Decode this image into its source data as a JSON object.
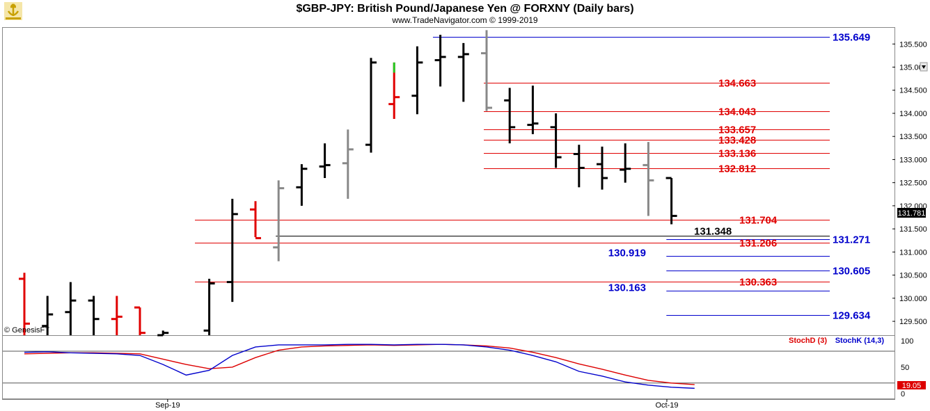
{
  "header": {
    "title": "$GBP-JPY:  British Pound/Japanese Yen @ FORXNY  (Daily bars)",
    "subtitle": "www.TradeNavigator.com © 1999-2019",
    "logo_icon": "gold-anchor-logo-icon"
  },
  "copyright": "© GenesisFT",
  "colors": {
    "red_level": "#e00000",
    "blue_level": "#0000cc",
    "black": "#000000",
    "gray_bar": "#888888",
    "green_bar": "#22cc22",
    "stoch_d": "#dd0000",
    "stoch_k": "#0000cc"
  },
  "chart_data": [
    {
      "type": "ohlc",
      "ylim": [
        129.2,
        135.85
      ],
      "y_ticks": [
        "135.500",
        "135.000",
        "134.500",
        "134.000",
        "133.500",
        "133.000",
        "132.500",
        "132.000",
        "131.500",
        "131.000",
        "130.500",
        "130.000",
        "129.500"
      ],
      "x_labels": [
        {
          "label": "Sep-19",
          "index": 6.2
        },
        {
          "label": "Oct-19",
          "index": 27.8
        }
      ],
      "last_price": "131.781",
      "bars": [
        {
          "o": 130.42,
          "h": 130.55,
          "l": 129.2,
          "c": 129.45,
          "color": "red"
        },
        {
          "o": 129.4,
          "h": 130.05,
          "l": 129.2,
          "c": 129.65,
          "color": "black"
        },
        {
          "o": 129.7,
          "h": 130.35,
          "l": 129.2,
          "c": 129.95,
          "color": "black"
        },
        {
          "o": 129.95,
          "h": 130.05,
          "l": 129.2,
          "c": 129.55,
          "color": "black"
        },
        {
          "o": 129.55,
          "h": 130.05,
          "l": 129.2,
          "c": 129.6,
          "color": "red"
        },
        {
          "o": 129.8,
          "h": 129.8,
          "l": 129.2,
          "c": 129.25,
          "color": "red"
        },
        {
          "o": 129.2,
          "h": 129.3,
          "l": 129.2,
          "c": 129.25,
          "color": "black"
        },
        {
          "o": 129.3,
          "h": 129.3,
          "l": 129.2,
          "c": 129.3,
          "color": "none"
        },
        {
          "o": 129.3,
          "h": 130.42,
          "l": 129.2,
          "c": 130.32,
          "color": "black"
        },
        {
          "o": 130.35,
          "h": 132.15,
          "l": 129.92,
          "c": 131.82,
          "color": "black"
        },
        {
          "o": 131.92,
          "h": 132.1,
          "l": 131.32,
          "c": 131.3,
          "color": "red"
        },
        {
          "o": 131.1,
          "h": 132.55,
          "l": 130.8,
          "c": 132.38,
          "color": "gray"
        },
        {
          "o": 132.4,
          "h": 132.9,
          "l": 132.0,
          "c": 132.8,
          "color": "black"
        },
        {
          "o": 132.85,
          "h": 133.35,
          "l": 132.6,
          "c": 132.88,
          "color": "black"
        },
        {
          "o": 132.92,
          "h": 133.65,
          "l": 132.15,
          "c": 133.22,
          "color": "gray"
        },
        {
          "o": 133.32,
          "h": 135.2,
          "l": 133.15,
          "c": 135.1,
          "color": "black"
        },
        {
          "o": 134.2,
          "h": 135.1,
          "l": 133.88,
          "c": 134.35,
          "color": "red",
          "green_top": 135.1
        },
        {
          "o": 134.38,
          "h": 135.45,
          "l": 133.98,
          "c": 135.1,
          "color": "black"
        },
        {
          "o": 135.15,
          "h": 135.7,
          "l": 134.58,
          "c": 135.22,
          "color": "black"
        },
        {
          "o": 135.22,
          "h": 135.52,
          "l": 134.25,
          "c": 135.28,
          "color": "black"
        },
        {
          "o": 135.3,
          "h": 135.8,
          "l": 134.05,
          "c": 134.12,
          "color": "gray"
        },
        {
          "o": 134.28,
          "h": 134.55,
          "l": 133.35,
          "c": 133.7,
          "color": "black"
        },
        {
          "o": 133.75,
          "h": 134.6,
          "l": 133.55,
          "c": 133.78,
          "color": "black"
        },
        {
          "o": 133.7,
          "h": 134.0,
          "l": 132.82,
          "c": 133.05,
          "color": "black"
        },
        {
          "o": 133.12,
          "h": 133.32,
          "l": 132.4,
          "c": 132.82,
          "color": "black"
        },
        {
          "o": 132.9,
          "h": 133.28,
          "l": 132.35,
          "c": 132.6,
          "color": "black"
        },
        {
          "o": 132.78,
          "h": 133.35,
          "l": 132.5,
          "c": 132.8,
          "color": "black"
        },
        {
          "o": 132.88,
          "h": 133.38,
          "l": 131.78,
          "c": 132.55,
          "color": "gray"
        },
        {
          "o": 132.6,
          "h": 132.6,
          "l": 131.6,
          "c": 131.781,
          "color": "black"
        }
      ]
    },
    {
      "type": "levels",
      "levels": [
        {
          "value": "135.649",
          "color": "blue",
          "x_start": 17.8,
          "label_side": "right"
        },
        {
          "value": "134.663",
          "color": "red",
          "x_start": 20.0,
          "label_side": "mid"
        },
        {
          "value": "134.043",
          "color": "red",
          "x_start": 20.0,
          "label_side": "mid"
        },
        {
          "value": "133.657",
          "color": "red",
          "x_start": 20.0,
          "label_side": "mid"
        },
        {
          "value": "133.428",
          "color": "red",
          "x_start": 20.0,
          "label_side": "mid"
        },
        {
          "value": "133.136",
          "color": "red",
          "x_start": 20.0,
          "label_side": "mid"
        },
        {
          "value": "132.812",
          "color": "red",
          "x_start": 20.0,
          "label_side": "mid"
        },
        {
          "value": "131.704",
          "color": "red",
          "x_start": 7.5,
          "label_side": "mid"
        },
        {
          "value": "131.348",
          "color": "black",
          "x_start": 11.0,
          "label_side": "left"
        },
        {
          "value": "131.271",
          "color": "blue",
          "x_start": 27.9,
          "label_side": "right"
        },
        {
          "value": "131.206",
          "color": "red",
          "x_start": 7.5,
          "label_side": "mid"
        },
        {
          "value": "130.919",
          "color": "blue",
          "x_start": 27.9,
          "label_side": "mid_left"
        },
        {
          "value": "130.605",
          "color": "blue",
          "x_start": 27.9,
          "label_side": "right"
        },
        {
          "value": "130.363",
          "color": "red",
          "x_start": 7.5,
          "label_side": "mid"
        },
        {
          "value": "130.163",
          "color": "blue",
          "x_start": 27.9,
          "label_side": "mid_left"
        },
        {
          "value": "129.634",
          "color": "blue",
          "x_start": 27.9,
          "label_side": "right"
        }
      ]
    },
    {
      "type": "line",
      "ylim": [
        0,
        105
      ],
      "y_ticks": [
        "100",
        "50",
        "0"
      ],
      "last_value": "19.05",
      "series": [
        {
          "name": "StochD (3)",
          "color": "#dd0000",
          "values": [
            75,
            76,
            77,
            77,
            76,
            75,
            65,
            55,
            47,
            50,
            68,
            82,
            88,
            90,
            91,
            92,
            91,
            92,
            93,
            92,
            90,
            86,
            78,
            68,
            56,
            46,
            35,
            25,
            20,
            17
          ]
        },
        {
          "name": "StochK (14,3)",
          "color": "#0000cc",
          "values": [
            78,
            79,
            77,
            76,
            75,
            72,
            55,
            35,
            44,
            72,
            88,
            92,
            92,
            92,
            93,
            93,
            92,
            93,
            93,
            92,
            88,
            82,
            72,
            60,
            42,
            33,
            22,
            16,
            12,
            10
          ]
        }
      ]
    }
  ]
}
